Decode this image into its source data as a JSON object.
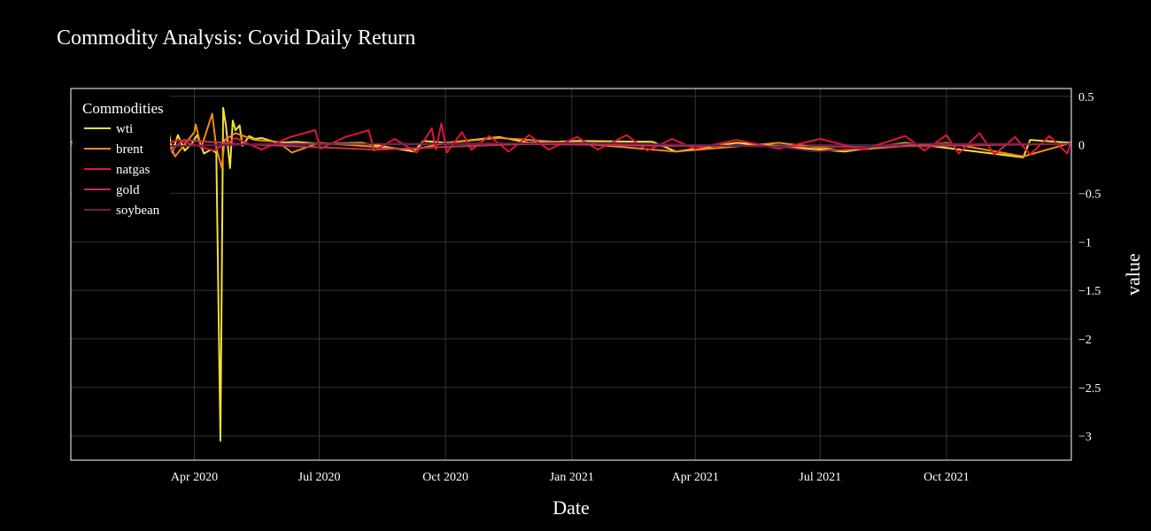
{
  "chart_data": {
    "type": "line",
    "title": "Commodity Analysis: Covid Daily Return",
    "xlabel": "Date",
    "ylabel": "value",
    "x_range": [
      "2020-01-02",
      "2021-12-31"
    ],
    "ylim": [
      -3.25,
      0.58
    ],
    "x_ticks": [
      {
        "date": "2020-04-01",
        "label": "Apr 2020"
      },
      {
        "date": "2020-07-01",
        "label": "Jul 2020"
      },
      {
        "date": "2020-10-01",
        "label": "Oct 2020"
      },
      {
        "date": "2021-01-01",
        "label": "Jan 2021"
      },
      {
        "date": "2021-04-01",
        "label": "Apr 2021"
      },
      {
        "date": "2021-07-01",
        "label": "Jul 2021"
      },
      {
        "date": "2021-10-01",
        "label": "Oct 2021"
      }
    ],
    "y_ticks": [
      {
        "value": 0.5,
        "label": "0.5"
      },
      {
        "value": 0,
        "label": "0"
      },
      {
        "value": -0.5,
        "label": "−0.5"
      },
      {
        "value": -1,
        "label": "−1"
      },
      {
        "value": -1.5,
        "label": "−1.5"
      },
      {
        "value": -2,
        "label": "−2"
      },
      {
        "value": -2.5,
        "label": "−2.5"
      },
      {
        "value": -3,
        "label": "−3"
      }
    ],
    "grid": true,
    "y_axis_side": "right",
    "legend": {
      "title": "Commodities",
      "position": "top-left"
    },
    "series": [
      {
        "name": "wti",
        "color": "#f4e03a",
        "points": [
          [
            "2020-01-02",
            0.03
          ],
          [
            "2020-01-15",
            -0.02
          ],
          [
            "2020-02-01",
            0.01
          ],
          [
            "2020-02-20",
            -0.03
          ],
          [
            "2020-03-05",
            0.05
          ],
          [
            "2020-03-09",
            -0.24
          ],
          [
            "2020-03-12",
            0.24
          ],
          [
            "2020-03-16",
            -0.08
          ],
          [
            "2020-03-20",
            0.1
          ],
          [
            "2020-03-25",
            -0.06
          ],
          [
            "2020-03-30",
            0.01
          ],
          [
            "2020-04-03",
            0.1
          ],
          [
            "2020-04-08",
            -0.09
          ],
          [
            "2020-04-13",
            -0.05
          ],
          [
            "2020-04-17",
            -0.08
          ],
          [
            "2020-04-20",
            -3.05
          ],
          [
            "2020-04-22",
            0.38
          ],
          [
            "2020-04-24",
            0.2
          ],
          [
            "2020-04-27",
            -0.24
          ],
          [
            "2020-04-29",
            0.25
          ],
          [
            "2020-05-01",
            0.15
          ],
          [
            "2020-05-04",
            0.2
          ],
          [
            "2020-05-06",
            -0.01
          ],
          [
            "2020-05-11",
            0.09
          ],
          [
            "2020-05-15",
            0.06
          ],
          [
            "2020-05-20",
            0.07
          ],
          [
            "2020-06-01",
            0.02
          ],
          [
            "2020-06-15",
            0.03
          ],
          [
            "2020-07-01",
            0.01
          ],
          [
            "2020-08-01",
            0.02
          ],
          [
            "2020-09-08",
            -0.07
          ],
          [
            "2020-09-15",
            0.04
          ],
          [
            "2020-10-01",
            0.02
          ],
          [
            "2020-11-09",
            0.08
          ],
          [
            "2020-12-01",
            0.02
          ],
          [
            "2021-01-05",
            0.04
          ],
          [
            "2021-03-01",
            0.03
          ],
          [
            "2021-03-18",
            -0.07
          ],
          [
            "2021-05-01",
            0.02
          ],
          [
            "2021-07-19",
            -0.07
          ],
          [
            "2021-09-01",
            0.02
          ],
          [
            "2021-11-26",
            -0.13
          ],
          [
            "2021-12-01",
            0.05
          ],
          [
            "2021-12-31",
            0.02
          ]
        ]
      },
      {
        "name": "brent",
        "color": "#f08b16",
        "points": [
          [
            "2020-01-02",
            0.03
          ],
          [
            "2020-02-01",
            -0.02
          ],
          [
            "2020-03-09",
            -0.24
          ],
          [
            "2020-03-12",
            0.05
          ],
          [
            "2020-03-18",
            -0.12
          ],
          [
            "2020-04-01",
            0.13
          ],
          [
            "2020-04-02",
            0.21
          ],
          [
            "2020-04-06",
            -0.03
          ],
          [
            "2020-04-14",
            0.32
          ],
          [
            "2020-04-17",
            -0.03
          ],
          [
            "2020-04-21",
            -0.24
          ],
          [
            "2020-04-23",
            0.05
          ],
          [
            "2020-05-01",
            0.12
          ],
          [
            "2020-05-15",
            0.05
          ],
          [
            "2020-06-01",
            0.03
          ],
          [
            "2020-06-11",
            -0.08
          ],
          [
            "2020-07-01",
            0.02
          ],
          [
            "2020-09-08",
            -0.05
          ],
          [
            "2020-10-01",
            0.02
          ],
          [
            "2020-11-09",
            0.07
          ],
          [
            "2021-01-01",
            0.02
          ],
          [
            "2021-03-18",
            -0.07
          ],
          [
            "2021-06-01",
            0.02
          ],
          [
            "2021-07-19",
            -0.06
          ],
          [
            "2021-10-01",
            0.02
          ],
          [
            "2021-11-26",
            -0.12
          ],
          [
            "2021-12-31",
            0.02
          ]
        ]
      },
      {
        "name": "natgas",
        "color": "#e3143c",
        "points": [
          [
            "2020-01-02",
            0.02
          ],
          [
            "2020-01-20",
            -0.04
          ],
          [
            "2020-02-10",
            0.04
          ],
          [
            "2020-03-01",
            -0.05
          ],
          [
            "2020-03-20",
            0.05
          ],
          [
            "2020-04-15",
            -0.06
          ],
          [
            "2020-05-01",
            0.07
          ],
          [
            "2020-05-20",
            -0.05
          ],
          [
            "2020-06-10",
            0.08
          ],
          [
            "2020-06-28",
            0.15
          ],
          [
            "2020-07-02",
            -0.04
          ],
          [
            "2020-07-20",
            0.08
          ],
          [
            "2020-08-06",
            0.15
          ],
          [
            "2020-08-10",
            -0.06
          ],
          [
            "2020-08-25",
            0.06
          ],
          [
            "2020-09-10",
            -0.08
          ],
          [
            "2020-09-21",
            0.17
          ],
          [
            "2020-09-24",
            -0.05
          ],
          [
            "2020-09-28",
            0.22
          ],
          [
            "2020-10-02",
            -0.08
          ],
          [
            "2020-10-13",
            0.13
          ],
          [
            "2020-10-20",
            -0.05
          ],
          [
            "2020-11-02",
            0.09
          ],
          [
            "2020-11-16",
            -0.07
          ],
          [
            "2020-12-01",
            0.1
          ],
          [
            "2020-12-15",
            -0.05
          ],
          [
            "2021-01-05",
            0.08
          ],
          [
            "2021-01-20",
            -0.05
          ],
          [
            "2021-02-10",
            0.1
          ],
          [
            "2021-02-25",
            -0.06
          ],
          [
            "2021-03-15",
            0.06
          ],
          [
            "2021-04-01",
            -0.04
          ],
          [
            "2021-05-01",
            0.05
          ],
          [
            "2021-06-01",
            -0.04
          ],
          [
            "2021-07-01",
            0.06
          ],
          [
            "2021-08-01",
            -0.05
          ],
          [
            "2021-09-01",
            0.09
          ],
          [
            "2021-09-15",
            -0.06
          ],
          [
            "2021-10-01",
            0.1
          ],
          [
            "2021-10-10",
            -0.09
          ],
          [
            "2021-10-25",
            0.12
          ],
          [
            "2021-11-05",
            -0.1
          ],
          [
            "2021-11-20",
            0.08
          ],
          [
            "2021-12-01",
            -0.1
          ],
          [
            "2021-12-15",
            0.09
          ],
          [
            "2021-12-28",
            -0.09
          ],
          [
            "2021-12-31",
            0.04
          ]
        ]
      },
      {
        "name": "gold",
        "color": "#c2304f",
        "points": [
          [
            "2020-01-02",
            0.01
          ],
          [
            "2020-03-09",
            -0.02
          ],
          [
            "2020-03-16",
            -0.05
          ],
          [
            "2020-03-24",
            0.05
          ],
          [
            "2020-05-01",
            0.01
          ],
          [
            "2020-08-11",
            -0.05
          ],
          [
            "2020-12-01",
            0.01
          ],
          [
            "2021-03-01",
            -0.01
          ],
          [
            "2021-08-09",
            -0.02
          ],
          [
            "2021-12-31",
            0.01
          ]
        ]
      },
      {
        "name": "soybean",
        "color": "#6b1f4f",
        "points": [
          [
            "2020-01-02",
            0.01
          ],
          [
            "2020-03-01",
            -0.02
          ],
          [
            "2020-06-01",
            0.01
          ],
          [
            "2020-09-01",
            0.01
          ],
          [
            "2021-01-15",
            0.02
          ],
          [
            "2021-06-01",
            -0.02
          ],
          [
            "2021-06-28",
            -0.07
          ],
          [
            "2021-09-01",
            0.01
          ],
          [
            "2021-12-31",
            0.01
          ]
        ]
      }
    ]
  }
}
